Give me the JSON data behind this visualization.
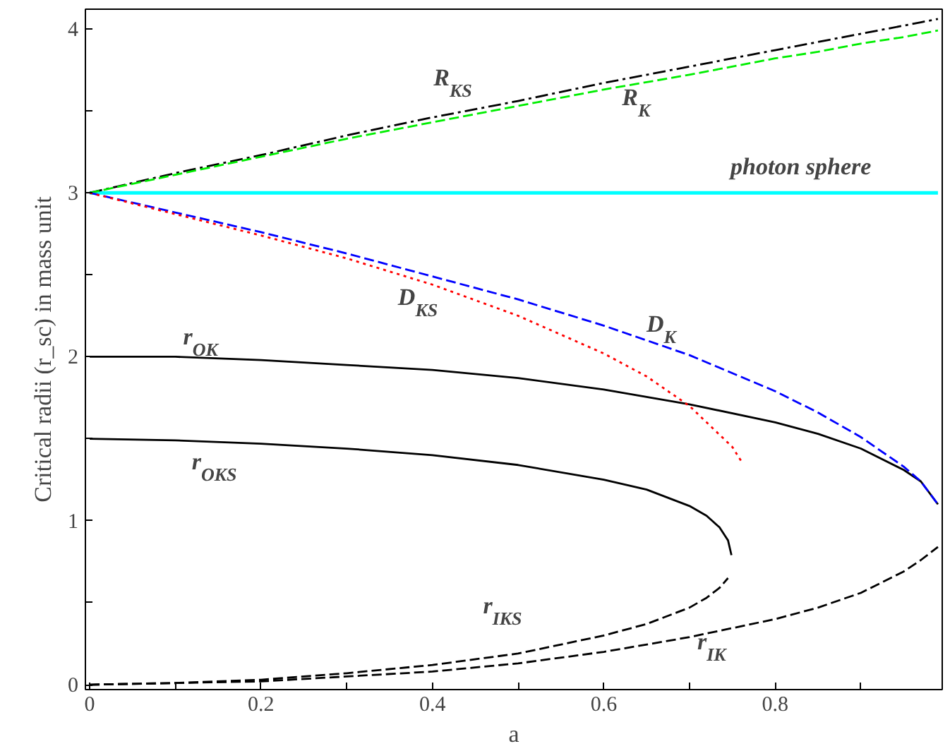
{
  "chart_data": {
    "type": "line",
    "xlabel": "a",
    "ylabel": "Critical radii (r_sc) in mass unit",
    "xlim": [
      -0.005,
      0.995
    ],
    "ylim": [
      -0.03,
      4.12
    ],
    "xticks": [
      0,
      {
        "value": 0.1,
        "label": null
      },
      "0.2",
      {
        "value": 0.3,
        "label": null
      },
      {
        "value": 0.4,
        "label": "0.4"
      },
      {
        "value": 0.5,
        "label": null
      },
      {
        "value": 0.6,
        "label": "0.6"
      },
      {
        "value": 0.7,
        "label": null
      },
      {
        "value": 0.8,
        "label": "0.8"
      },
      {
        "value": 0.9,
        "label": null
      }
    ],
    "yticks": [
      0,
      {
        "value": 0.5,
        "label": null
      },
      1,
      {
        "value": 1.5,
        "label": null
      },
      2,
      {
        "value": 2.5,
        "label": null
      },
      3,
      {
        "value": 3.5,
        "label": null
      },
      4
    ],
    "grid": false,
    "marker": "none",
    "series": [
      {
        "name": "R$_{KS}$",
        "color": "#000000",
        "line_style": "dashdot",
        "x": [
          0,
          0.1,
          0.2,
          0.3,
          0.4,
          0.5,
          0.6,
          0.7,
          0.8,
          0.85,
          0.9,
          0.95,
          0.97,
          0.99
        ],
        "values": [
          3,
          3.12,
          3.23,
          3.35,
          3.46,
          3.56,
          3.67,
          3.77,
          3.87,
          3.92,
          3.97,
          4.02,
          4.04,
          4.06
        ]
      },
      {
        "name": "R$_{K}$",
        "color": "#00ee00",
        "line_style": "dashed",
        "x": [
          0,
          0.1,
          0.2,
          0.3,
          0.4,
          0.5,
          0.6,
          0.7,
          0.8,
          0.85,
          0.9,
          0.95,
          0.97,
          0.99
        ],
        "values": [
          3,
          3.11,
          3.22,
          3.33,
          3.43,
          3.53,
          3.63,
          3.72,
          3.82,
          3.86,
          3.91,
          3.95,
          3.97,
          3.99
        ]
      },
      {
        "name": "photon sphere",
        "color": "#00ffff",
        "line_style": "solid",
        "x": [
          0,
          0.99
        ],
        "values": [
          3,
          3
        ]
      },
      {
        "name": "D$_{KS}$",
        "color": "#ff0000",
        "line_style": "dotted",
        "x": [
          0,
          0.1,
          0.2,
          0.3,
          0.4,
          0.5,
          0.6,
          0.65,
          0.7,
          0.73,
          0.75,
          0.762
        ],
        "values": [
          3,
          2.87,
          2.74,
          2.6,
          2.44,
          2.25,
          2.02,
          1.88,
          1.7,
          1.55,
          1.45,
          1.35
        ]
      },
      {
        "name": "D$_{K}$",
        "color": "#0000ff",
        "line_style": "dashed",
        "x": [
          0,
          0.1,
          0.2,
          0.3,
          0.4,
          0.5,
          0.6,
          0.7,
          0.8,
          0.85,
          0.9,
          0.95,
          0.97,
          0.99
        ],
        "values": [
          3,
          2.88,
          2.76,
          2.63,
          2.49,
          2.35,
          2.19,
          2.01,
          1.79,
          1.66,
          1.51,
          1.33,
          1.24,
          1.1
        ]
      },
      {
        "name": "r$_{OK}$",
        "color": "#000000",
        "line_style": "solid",
        "x": [
          0,
          0.1,
          0.2,
          0.3,
          0.4,
          0.5,
          0.6,
          0.7,
          0.8,
          0.85,
          0.9,
          0.95,
          0.97,
          0.99
        ],
        "values": [
          2,
          2,
          1.98,
          1.95,
          1.92,
          1.87,
          1.8,
          1.71,
          1.6,
          1.53,
          1.44,
          1.31,
          1.24,
          1.1
        ]
      },
      {
        "name": "r$_{OKS}$",
        "color": "#000000",
        "line_style": "solid",
        "x": [
          0,
          0.1,
          0.2,
          0.3,
          0.4,
          0.5,
          0.6,
          0.65,
          0.7,
          0.72,
          0.735,
          0.745,
          0.749
        ],
        "values": [
          1.5,
          1.49,
          1.47,
          1.44,
          1.4,
          1.34,
          1.25,
          1.19,
          1.09,
          1.03,
          0.96,
          0.88,
          0.79
        ]
      },
      {
        "name": "r$_{IKS}$",
        "color": "#000000",
        "line_style": "dashed",
        "x": [
          0,
          0.1,
          0.2,
          0.3,
          0.4,
          0.5,
          0.6,
          0.65,
          0.7,
          0.72,
          0.735,
          0.745
        ],
        "values": [
          0,
          0.01,
          0.03,
          0.07,
          0.12,
          0.19,
          0.3,
          0.37,
          0.47,
          0.53,
          0.59,
          0.65
        ]
      },
      {
        "name": "r$_{IK}$",
        "color": "#000000",
        "line_style": "dashed",
        "x": [
          0,
          0.1,
          0.2,
          0.3,
          0.4,
          0.5,
          0.6,
          0.7,
          0.8,
          0.85,
          0.9,
          0.95,
          0.97,
          0.99
        ],
        "values": [
          0,
          0.01,
          0.02,
          0.05,
          0.08,
          0.13,
          0.2,
          0.29,
          0.4,
          0.47,
          0.56,
          0.69,
          0.76,
          0.84
        ]
      }
    ]
  }
}
